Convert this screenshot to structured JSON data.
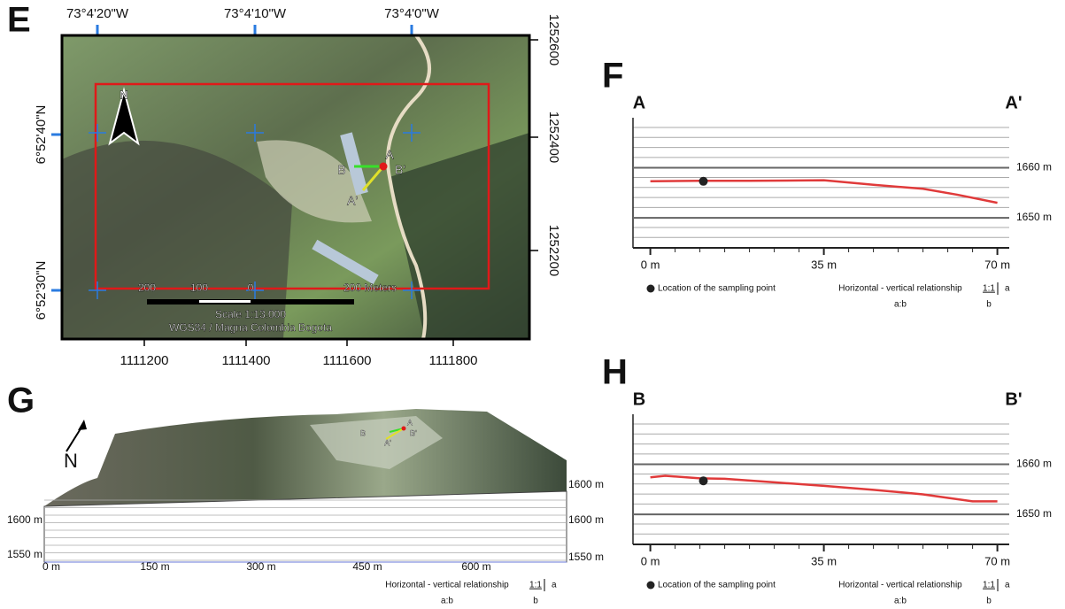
{
  "panel_e": {
    "letter": "E",
    "lon_labels": [
      "73°4'20\"W",
      "73°4'10\"W",
      "73°4'0\"W"
    ],
    "lat_labels": [
      "6°52'40\"N",
      "6°52'30\"N"
    ],
    "northing_labels": [
      "1252600",
      "1252400",
      "1252200"
    ],
    "easting_labels": [
      "1111200",
      "1111400",
      "1111600",
      "1111800"
    ],
    "north_arrow": "N",
    "scale_labels": [
      "200",
      "100",
      "0",
      "200 Meters"
    ],
    "scale_text": "Scale 1:13.000",
    "datum": "WGS84 / Magna Colombia Bogota",
    "section_labels": [
      "A",
      "A'",
      "B",
      "B'"
    ]
  },
  "panel_g": {
    "letter": "G",
    "north_arrow": "N",
    "x_labels": [
      "0 m",
      "150 m",
      "300 m",
      "450 m",
      "600 m"
    ],
    "left_labels": [
      "1600 m",
      "1550 m"
    ],
    "right_labels": [
      "1600 m",
      "1600 m",
      "1550 m"
    ],
    "section_labels": [
      "A",
      "A'",
      "B",
      "B'"
    ],
    "ratio_text": "Horizontal - vertical relationship",
    "ratio": "1:1",
    "ratio_a": "a",
    "ratio_ab": "a:b",
    "ratio_b": "b"
  },
  "profiles": [
    {
      "letter": "F",
      "start": "A",
      "end": "A'",
      "xlim": [
        -3.5,
        71.5
      ],
      "ylim": [
        1644,
        1670
      ],
      "xticks": [
        {
          "value": 0,
          "label": "0 m"
        },
        {
          "value": 35,
          "label": "35 m"
        },
        {
          "value": 70,
          "label": "70 m"
        }
      ],
      "yticks": [
        {
          "value": 1650,
          "label": "1650 m"
        },
        {
          "value": 1660,
          "label": "1660 m"
        }
      ],
      "x": [
        0,
        10,
        20,
        35,
        45,
        55,
        62,
        70
      ],
      "values": [
        1657.3,
        1657.4,
        1657.4,
        1657.5,
        1656.6,
        1655.8,
        1654.6,
        1653.0
      ],
      "color": "#e03a3a",
      "sample_x": 10.7,
      "sample_y": 1657.3,
      "legend_point": "Location of the sampling point",
      "ratio_text": "Horizontal - vertical relationship",
      "ratio": "1:1",
      "ratio_a": "a",
      "ratio_ab": "a:b",
      "ratio_b": "b"
    },
    {
      "letter": "H",
      "start": "B",
      "end": "B'",
      "xlim": [
        -3.5,
        71.5
      ],
      "ylim": [
        1644,
        1670
      ],
      "xticks": [
        {
          "value": 0,
          "label": "0 m"
        },
        {
          "value": 35,
          "label": "35 m"
        },
        {
          "value": 70,
          "label": "70 m"
        }
      ],
      "yticks": [
        {
          "value": 1650,
          "label": "1650 m"
        },
        {
          "value": 1660,
          "label": "1660 m"
        }
      ],
      "x": [
        0,
        3,
        10,
        15,
        25,
        35,
        45,
        55,
        65,
        70
      ],
      "values": [
        1657.4,
        1657.7,
        1657.2,
        1657.1,
        1656.4,
        1655.7,
        1654.9,
        1654.0,
        1652.6,
        1652.6
      ],
      "color": "#e03a3a",
      "sample_x": 10.7,
      "sample_y": 1656.7,
      "legend_point": "Location of the sampling point",
      "ratio_text": "Horizontal - vertical relationship",
      "ratio": "1:1",
      "ratio_a": "a",
      "ratio_ab": "a:b",
      "ratio_b": "b"
    }
  ]
}
